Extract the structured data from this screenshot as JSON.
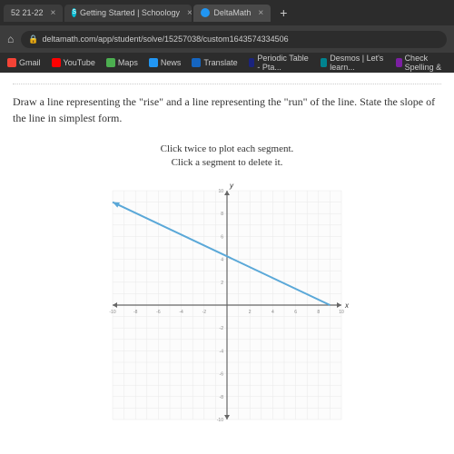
{
  "browser": {
    "tabs": [
      {
        "label": "52 21-22",
        "icon": "pink",
        "active": false
      },
      {
        "label": "Getting Started | Schoology",
        "icon": "teal",
        "active": false,
        "showS": true
      },
      {
        "label": "DeltaMath",
        "icon": "blue",
        "active": true
      }
    ],
    "url": "deltamath.com/app/student/solve/15257038/custom1643574334506",
    "bookmarks": [
      {
        "label": "Gmail",
        "icon": "red"
      },
      {
        "label": "YouTube",
        "icon": "yt"
      },
      {
        "label": "Maps",
        "icon": "green"
      },
      {
        "label": "News",
        "icon": "blue"
      },
      {
        "label": "Translate",
        "icon": "darkblue"
      },
      {
        "label": "Periodic Table - Pta...",
        "icon": "navy"
      },
      {
        "label": "Desmos | Let's learn...",
        "icon": "teal"
      },
      {
        "label": "Check Spelling &",
        "icon": "purple"
      }
    ]
  },
  "question": {
    "prompt": "Draw a line representing the \"rise\" and a line representing the \"run\" of the line. State the slope of the line in simplest form.",
    "instruction_line1": "Click twice to plot each segment.",
    "instruction_line2": "Click a segment to delete it."
  },
  "graph": {
    "xmin": -10,
    "xmax": 10,
    "ymin": -10,
    "ymax": 10,
    "tick_step": 1,
    "grid_color": "#e8e8e8",
    "axis_color": "#666666",
    "line_color": "#5aa8d8",
    "line_width": 2,
    "line_points": [
      [
        -10,
        9
      ],
      [
        9,
        0
      ]
    ],
    "arrow_start": true,
    "background": "#fcfcfc",
    "x_label": "x",
    "y_label": "y"
  }
}
